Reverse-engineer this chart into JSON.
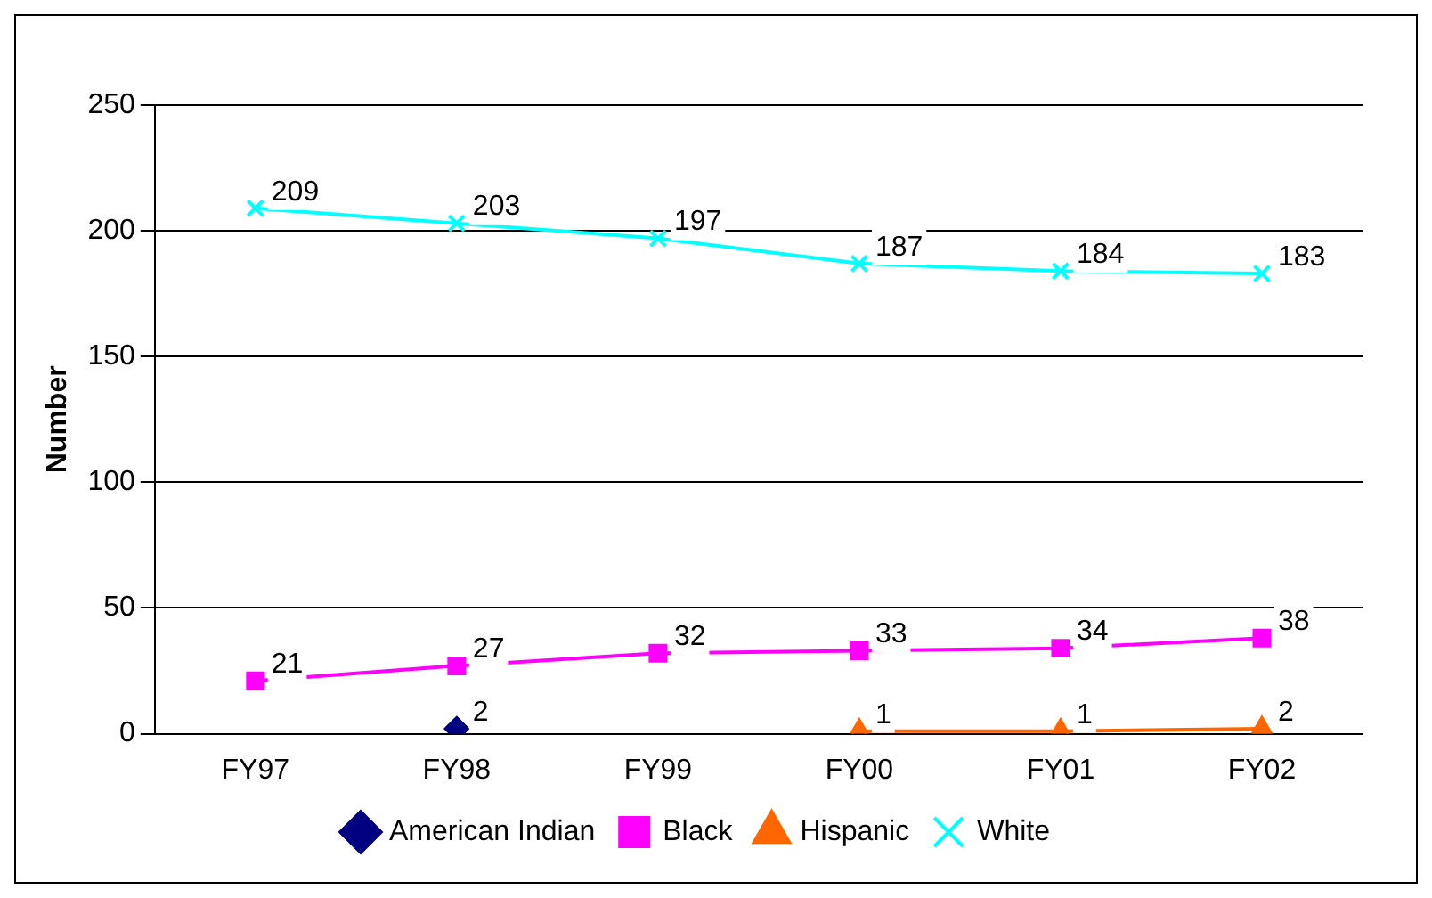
{
  "chart_data": {
    "type": "line",
    "ylabel": "Number",
    "categories": [
      "FY97",
      "FY98",
      "FY99",
      "FY00",
      "FY01",
      "FY02"
    ],
    "series": [
      {
        "name": "American Indian",
        "color": "#000080",
        "marker": "diamond",
        "values": [
          null,
          2,
          null,
          null,
          null,
          null
        ]
      },
      {
        "name": "Black",
        "color": "#ff00ff",
        "marker": "square",
        "values": [
          21,
          27,
          32,
          33,
          34,
          38
        ]
      },
      {
        "name": "Hispanic",
        "color": "#ff6600",
        "marker": "triangle",
        "values": [
          null,
          null,
          null,
          1,
          1,
          2
        ]
      },
      {
        "name": "White",
        "color": "#00ffff",
        "marker": "cross",
        "values": [
          209,
          203,
          197,
          187,
          184,
          183
        ]
      }
    ],
    "ylim": [
      0,
      250
    ],
    "yticks": [
      0,
      50,
      100,
      150,
      200,
      250
    ],
    "grid": "y",
    "legend": "bottom",
    "data_labels": true
  }
}
